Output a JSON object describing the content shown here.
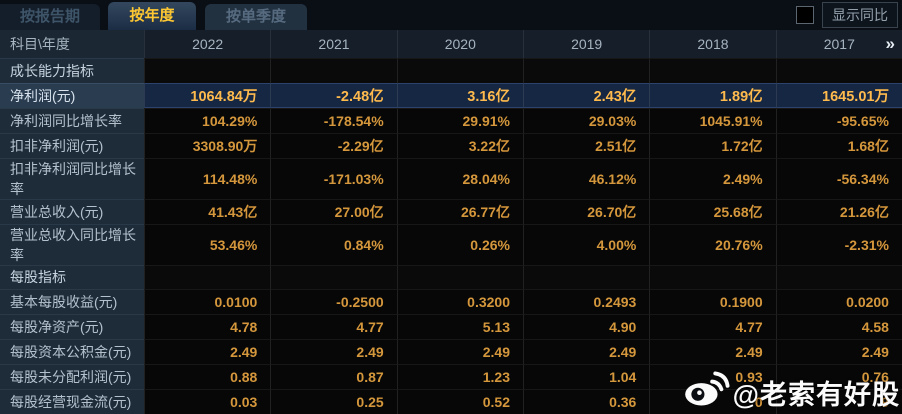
{
  "tabs": [
    {
      "label": "按报告期",
      "active": false
    },
    {
      "label": "按年度",
      "active": true
    },
    {
      "label": "按单季度",
      "active": false
    }
  ],
  "controls": {
    "show_yoy_label": "显示同比",
    "show_yoy_checked": false
  },
  "table": {
    "corner": "科目\\年度",
    "years": [
      "2022",
      "2021",
      "2020",
      "2019",
      "2018",
      "2017"
    ],
    "more": "»",
    "rows": [
      {
        "type": "section",
        "label": "成长能力指标",
        "values": [
          "",
          "",
          "",
          "",
          "",
          ""
        ]
      },
      {
        "type": "data",
        "highlight": true,
        "label": "净利润(元)",
        "values": [
          "1064.84万",
          "-2.48亿",
          "3.16亿",
          "2.43亿",
          "1.89亿",
          "1645.01万"
        ]
      },
      {
        "type": "data",
        "label": "净利润同比增长率",
        "values": [
          "104.29%",
          "-178.54%",
          "29.91%",
          "29.03%",
          "1045.91%",
          "-95.65%"
        ]
      },
      {
        "type": "data",
        "label": "扣非净利润(元)",
        "values": [
          "3308.90万",
          "-2.29亿",
          "3.22亿",
          "2.51亿",
          "1.72亿",
          "1.68亿"
        ]
      },
      {
        "type": "data",
        "label": "扣非净利润同比增长率",
        "values": [
          "114.48%",
          "-171.03%",
          "28.04%",
          "46.12%",
          "2.49%",
          "-56.34%"
        ]
      },
      {
        "type": "data",
        "label": "营业总收入(元)",
        "values": [
          "41.43亿",
          "27.00亿",
          "26.77亿",
          "26.70亿",
          "25.68亿",
          "21.26亿"
        ]
      },
      {
        "type": "data",
        "label": "营业总收入同比增长率",
        "values": [
          "53.46%",
          "0.84%",
          "0.26%",
          "4.00%",
          "20.76%",
          "-2.31%"
        ]
      },
      {
        "type": "section",
        "label": "每股指标",
        "values": [
          "",
          "",
          "",
          "",
          "",
          ""
        ]
      },
      {
        "type": "data",
        "label": "基本每股收益(元)",
        "values": [
          "0.0100",
          "-0.2500",
          "0.3200",
          "0.2493",
          "0.1900",
          "0.0200"
        ]
      },
      {
        "type": "data",
        "label": "每股净资产(元)",
        "values": [
          "4.78",
          "4.77",
          "5.13",
          "4.90",
          "4.77",
          "4.58"
        ]
      },
      {
        "type": "data",
        "label": "每股资本公积金(元)",
        "values": [
          "2.49",
          "2.49",
          "2.49",
          "2.49",
          "2.49",
          "2.49"
        ]
      },
      {
        "type": "data",
        "label": "每股未分配利润(元)",
        "values": [
          "0.88",
          "0.87",
          "1.23",
          "1.04",
          "0.93",
          "0.76"
        ]
      },
      {
        "type": "data",
        "label": "每股经营现金流(元)",
        "values": [
          "0.03",
          "0.25",
          "0.52",
          "0.36",
          "0",
          "9"
        ]
      }
    ]
  },
  "watermark": {
    "text": "@老索有好股",
    "icon": "weibo-icon"
  },
  "colors": {
    "accent_yellow": "#ffc832",
    "value_orange": "#d5973c",
    "highlight_value_orange": "#ffba4e",
    "highlight_row_bg": "#152742",
    "label_column_bg": "#1e2c3a",
    "header_row_bg": "#151e29",
    "cell_bg": "#070707"
  }
}
